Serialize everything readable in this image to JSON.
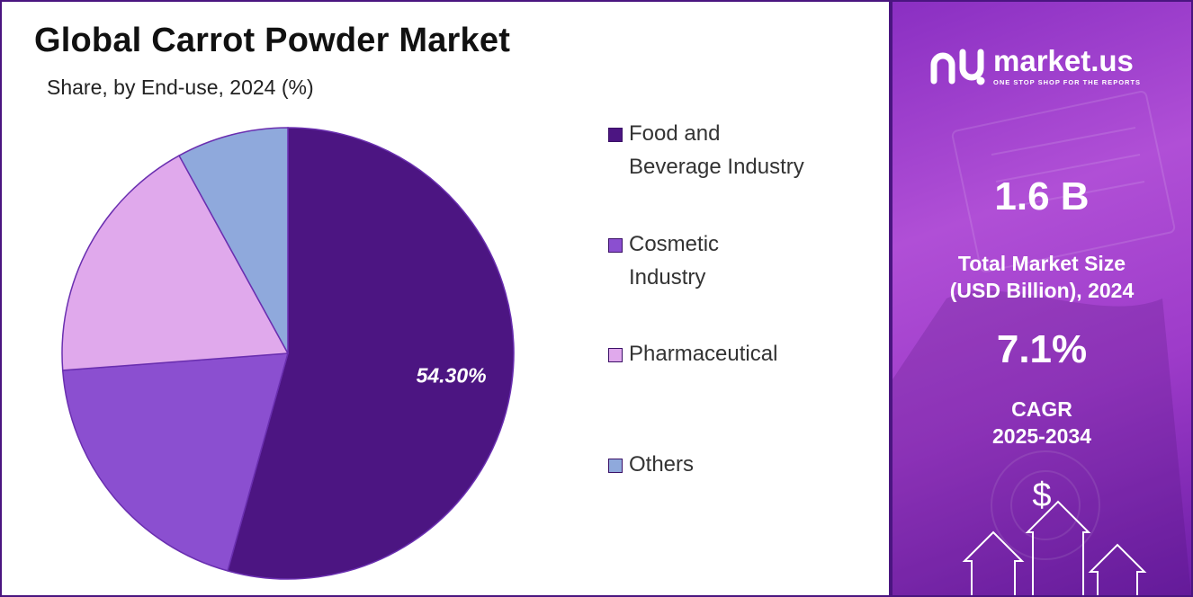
{
  "header": {
    "title": "Global Carrot Powder Market",
    "subtitle": "Share, by End-use, 2024 (%)"
  },
  "chart_data": {
    "type": "pie",
    "categories": [
      "Food and Beverage Industry",
      "Cosmetic Industry",
      "Pharmaceutical",
      "Others"
    ],
    "values": [
      54.3,
      19.5,
      18.2,
      8.0
    ],
    "colors": [
      "#4c1582",
      "#8b4fd0",
      "#e0a9ec",
      "#8fa9dc"
    ],
    "data_labels": [
      "54.30%",
      "",
      "",
      ""
    ],
    "legend": [
      "Food and Beverage Industry",
      "Cosmetic Industry",
      "Pharmaceutical",
      "Others"
    ],
    "legend_position": "right"
  },
  "legend": {
    "items": [
      {
        "label": "Food and\nBeverage Industry",
        "color": "#4c1582"
      },
      {
        "label": "Cosmetic\nIndustry",
        "color": "#8b4fd0"
      },
      {
        "label": "Pharmaceutical",
        "color": "#e0a9ec"
      },
      {
        "label": "Others",
        "color": "#8fa9dc"
      }
    ]
  },
  "sidebar": {
    "brand_name": "market.us",
    "brand_tagline": "ONE STOP SHOP FOR THE REPORTS",
    "market_size_value": "1.6 B",
    "market_size_label_line1": "Total Market Size",
    "market_size_label_line2": "(USD Billion), 2024",
    "cagr_value": "7.1%",
    "cagr_label_line1": "CAGR",
    "cagr_label_line2": "2025-2034",
    "dollar_symbol": "$",
    "icons": [
      "brand-logo-icon",
      "arrow-up-icon",
      "dollar-icon"
    ],
    "panel_color": "#9d3bc9"
  }
}
